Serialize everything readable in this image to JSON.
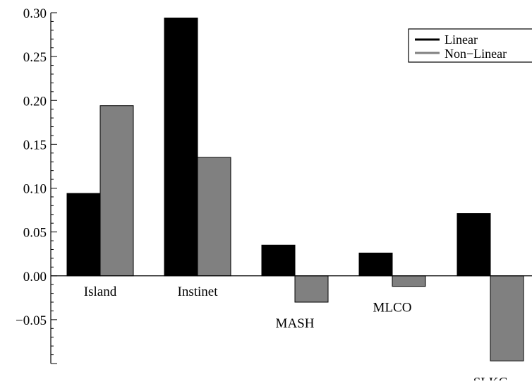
{
  "chart_data": {
    "type": "bar",
    "title": "",
    "xlabel": "",
    "ylabel": "",
    "ylim": [
      -0.1,
      0.3
    ],
    "yticks": [
      -0.05,
      0.0,
      0.05,
      0.1,
      0.15,
      0.2,
      0.25,
      0.3
    ],
    "ytick_labels": [
      "−0.05",
      "0.00",
      "0.05",
      "0.10",
      "0.15",
      "0.20",
      "0.25",
      "0.30"
    ],
    "categories": [
      "Island",
      "Instinet",
      "MASH",
      "MLCO",
      "SLKC"
    ],
    "series": [
      {
        "name": "Linear",
        "values": [
          0.094,
          0.294,
          0.035,
          0.026,
          0.071
        ],
        "color": "#000000"
      },
      {
        "name": "Non−Linear",
        "values": [
          0.194,
          0.135,
          -0.03,
          -0.012,
          -0.097
        ],
        "color": "#808080"
      }
    ],
    "legend_position": "top-right",
    "grid": false
  }
}
